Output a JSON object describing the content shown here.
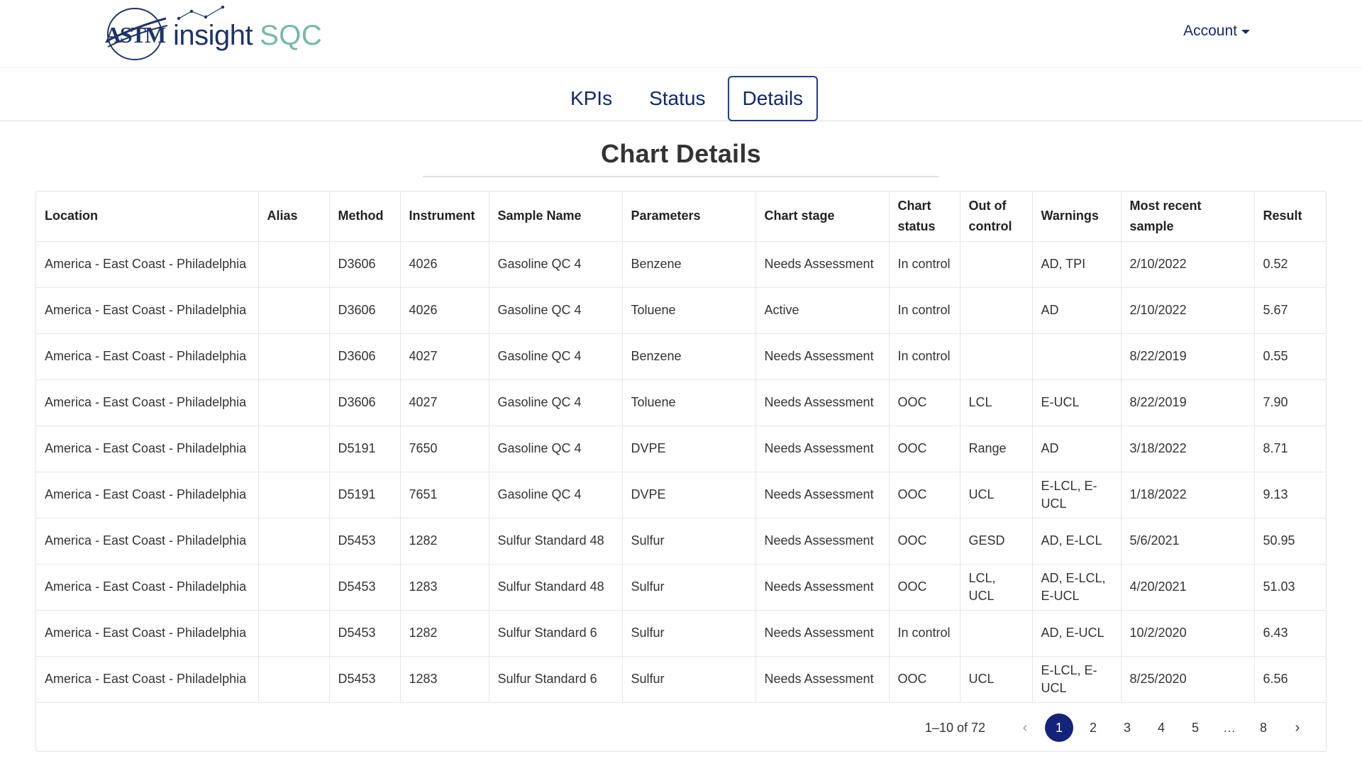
{
  "brand": {
    "logo_text": "ASTM",
    "word_insight": "insight",
    "word_sqc": "SQC",
    "colors": {
      "navy": "#1f3465",
      "teal": "#79b8a8",
      "accent": "#14237a"
    }
  },
  "header": {
    "account_label": "Account"
  },
  "tabs": [
    {
      "label": "KPIs",
      "active": false
    },
    {
      "label": "Status",
      "active": false
    },
    {
      "label": "Details",
      "active": true
    }
  ],
  "page": {
    "title": "Chart Details"
  },
  "table": {
    "columns": [
      "Location",
      "Alias",
      "Method",
      "Instrument",
      "Sample Name",
      "Parameters",
      "Chart stage",
      "Chart status",
      "Out of control",
      "Warnings",
      "Most recent sample",
      "Result"
    ],
    "rows": [
      [
        "America - East Coast - Philadelphia",
        "",
        "D3606",
        "4026",
        "Gasoline QC 4",
        "Benzene",
        "Needs Assessment",
        "In control",
        "",
        "AD, TPI",
        "2/10/2022",
        "0.52"
      ],
      [
        "America - East Coast - Philadelphia",
        "",
        "D3606",
        "4026",
        "Gasoline QC 4",
        "Toluene",
        "Active",
        "In control",
        "",
        "AD",
        "2/10/2022",
        "5.67"
      ],
      [
        "America - East Coast - Philadelphia",
        "",
        "D3606",
        "4027",
        "Gasoline QC 4",
        "Benzene",
        "Needs Assessment",
        "In control",
        "",
        "",
        "8/22/2019",
        "0.55"
      ],
      [
        "America - East Coast - Philadelphia",
        "",
        "D3606",
        "4027",
        "Gasoline QC 4",
        "Toluene",
        "Needs Assessment",
        "OOC",
        "LCL",
        "E-UCL",
        "8/22/2019",
        "7.90"
      ],
      [
        "America - East Coast - Philadelphia",
        "",
        "D5191",
        "7650",
        "Gasoline QC 4",
        "DVPE",
        "Needs Assessment",
        "OOC",
        "Range",
        "AD",
        "3/18/2022",
        "8.71"
      ],
      [
        "America - East Coast - Philadelphia",
        "",
        "D5191",
        "7651",
        "Gasoline QC 4",
        "DVPE",
        "Needs Assessment",
        "OOC",
        "UCL",
        "E-LCL, E-UCL",
        "1/18/2022",
        "9.13"
      ],
      [
        "America - East Coast - Philadelphia",
        "",
        "D5453",
        "1282",
        "Sulfur Standard 48",
        "Sulfur",
        "Needs Assessment",
        "OOC",
        "GESD",
        "AD, E-LCL",
        "5/6/2021",
        "50.95"
      ],
      [
        "America - East Coast - Philadelphia",
        "",
        "D5453",
        "1283",
        "Sulfur Standard 48",
        "Sulfur",
        "Needs Assessment",
        "OOC",
        "LCL, UCL",
        "AD, E-LCL, E-UCL",
        "4/20/2021",
        "51.03"
      ],
      [
        "America - East Coast - Philadelphia",
        "",
        "D5453",
        "1282",
        "Sulfur Standard 6",
        "Sulfur",
        "Needs Assessment",
        "In control",
        "",
        "AD, E-UCL",
        "10/2/2020",
        "6.43"
      ],
      [
        "America - East Coast - Philadelphia",
        "",
        "D5453",
        "1283",
        "Sulfur Standard 6",
        "Sulfur",
        "Needs Assessment",
        "OOC",
        "UCL",
        "E-LCL, E-UCL",
        "8/25/2020",
        "6.56"
      ]
    ]
  },
  "pagination": {
    "range_text": "1–10 of 72",
    "pages": [
      "1",
      "2",
      "3",
      "4",
      "5",
      "…",
      "8"
    ],
    "current": "1",
    "prev_icon": "‹",
    "next_icon": "›"
  }
}
